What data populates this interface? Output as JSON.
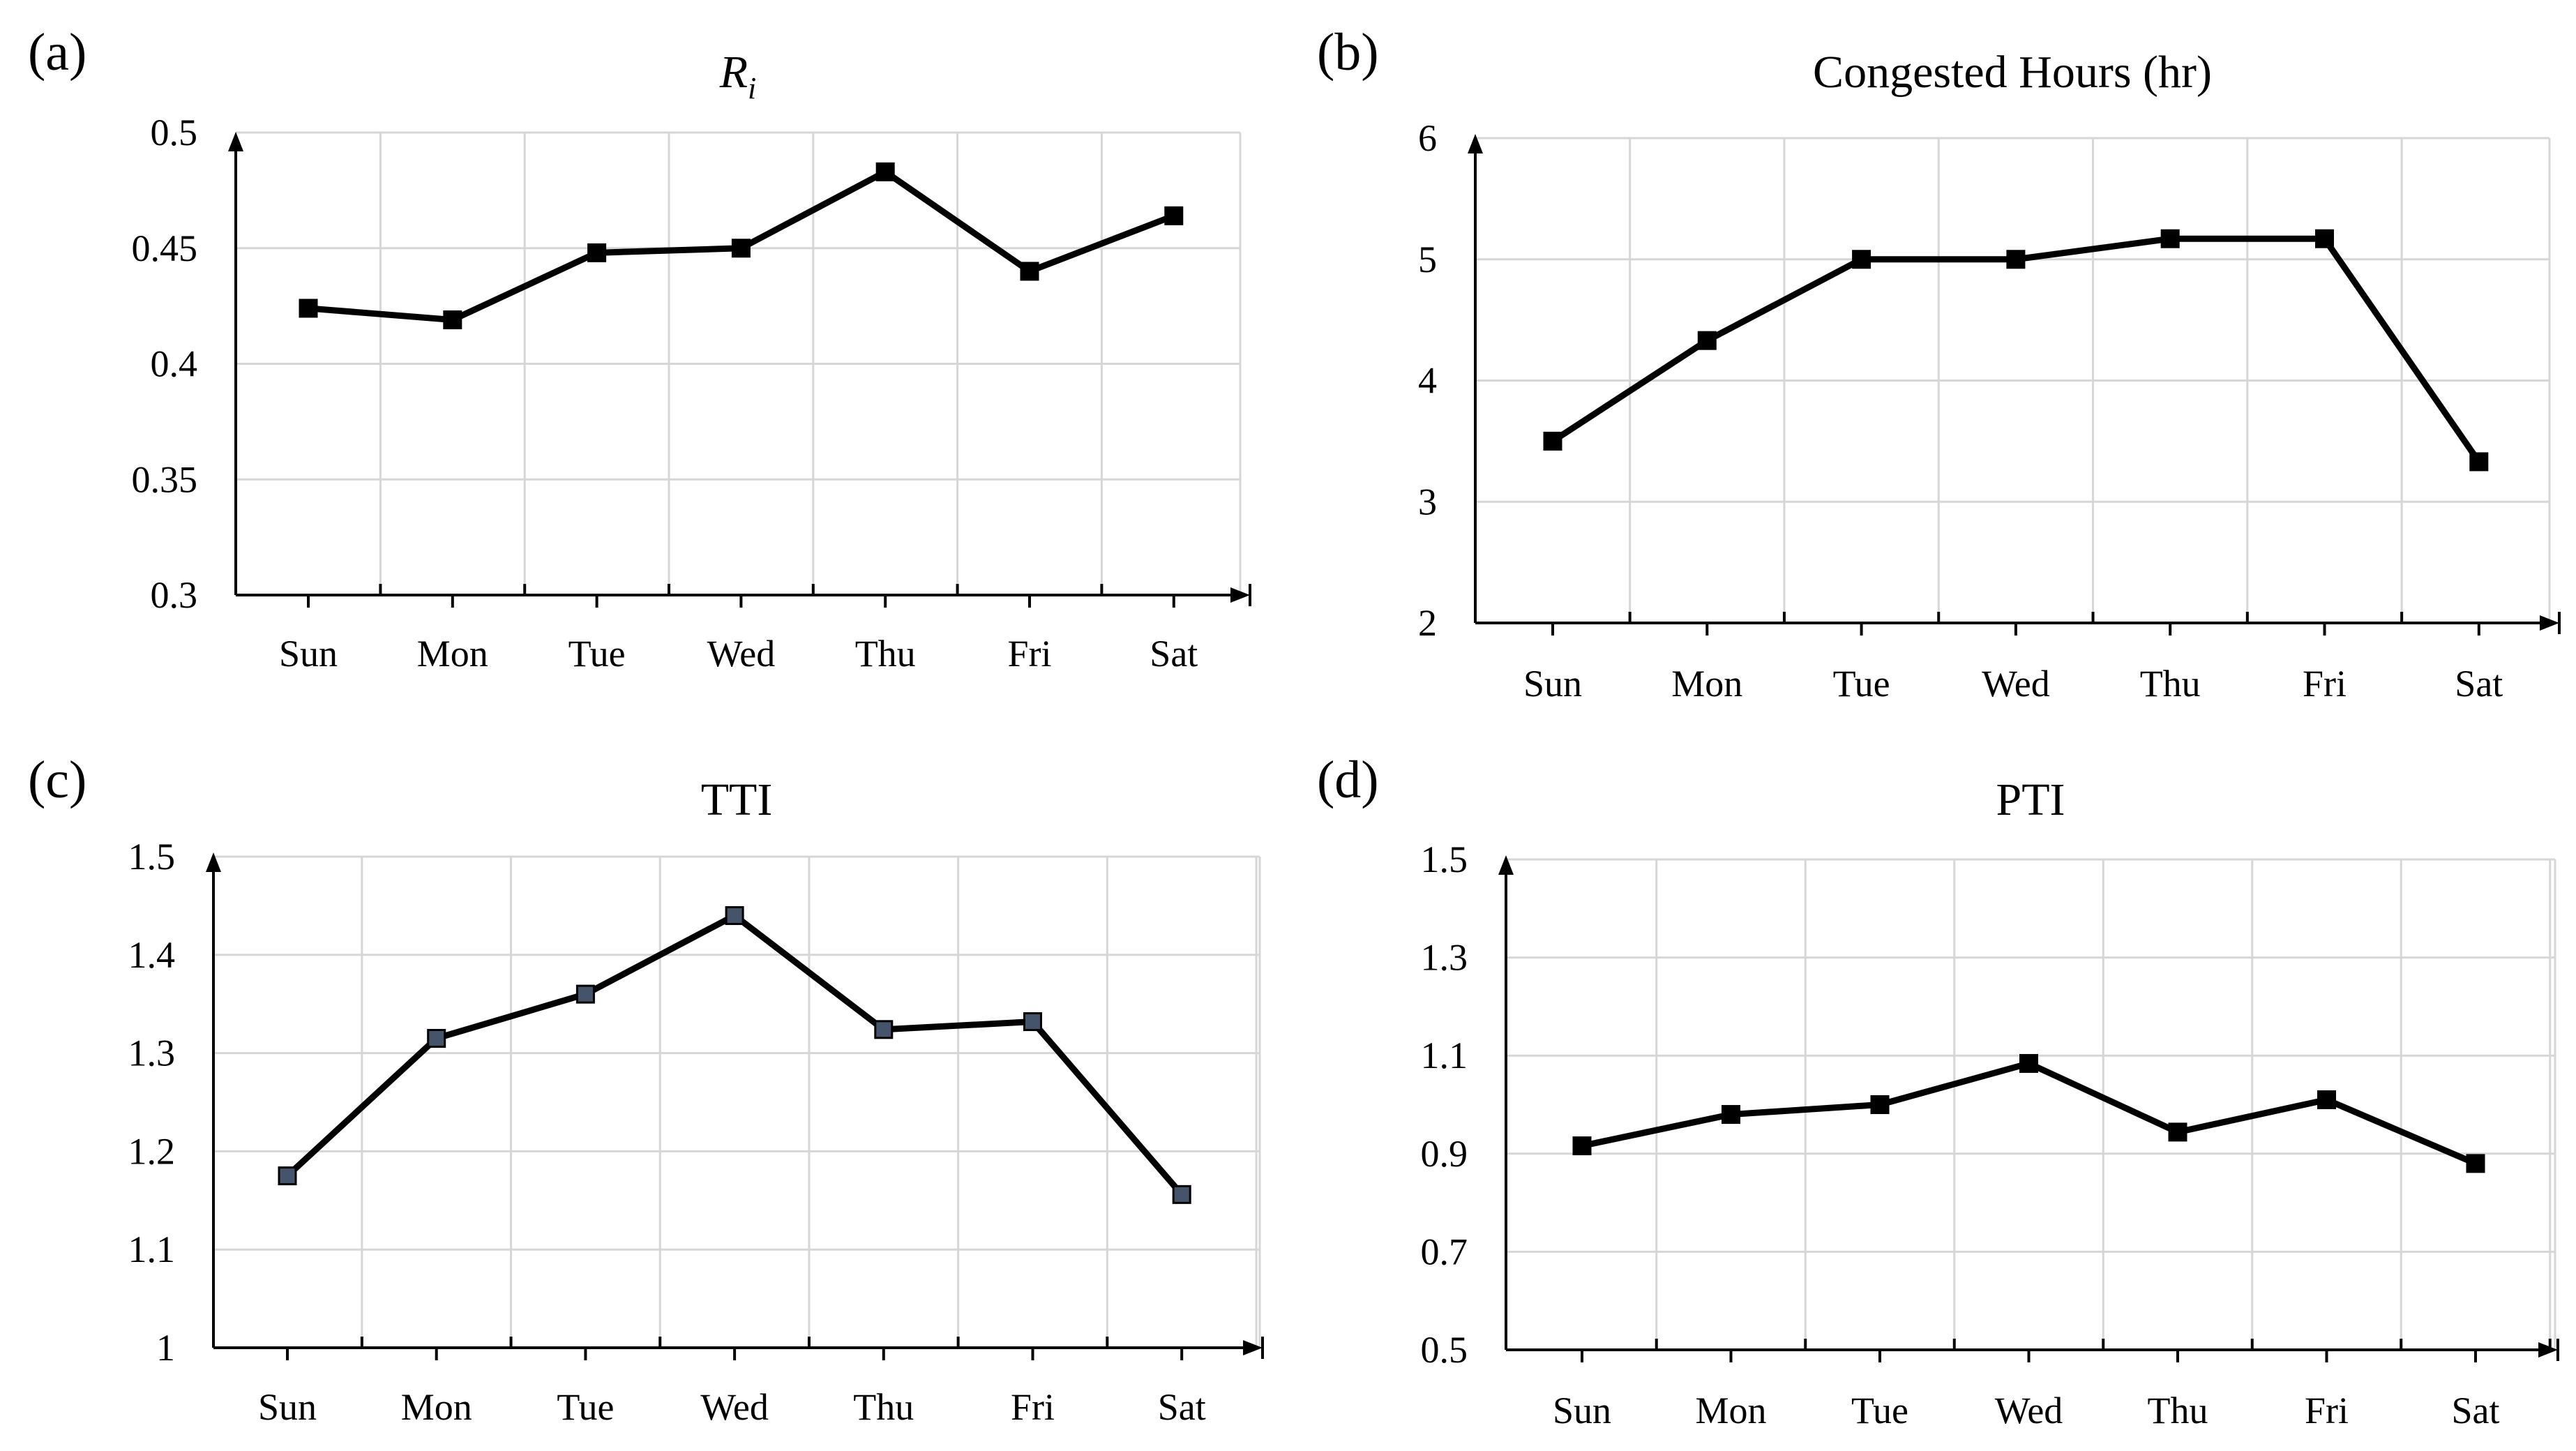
{
  "chart_data": [
    {
      "panel_label": "(a)",
      "type": "line",
      "title": "R",
      "title_subscript": "i",
      "categories": [
        "Sun",
        "Mon",
        "Tue",
        "Wed",
        "Thu",
        "Fri",
        "Sat"
      ],
      "values": [
        0.424,
        0.419,
        0.448,
        0.45,
        0.483,
        0.44,
        0.464
      ],
      "ylim": [
        0.3,
        0.5
      ],
      "yticks": [
        "0.3",
        "0.35",
        "0.4",
        "0.45",
        "0.5"
      ],
      "xlabel": "",
      "ylabel": "",
      "grid": true,
      "marker_color": "#000000"
    },
    {
      "panel_label": "(b)",
      "type": "line",
      "title": "Congested Hours (hr)",
      "categories": [
        "Sun",
        "Mon",
        "Tue",
        "Wed",
        "Thu",
        "Fri",
        "Sat"
      ],
      "values": [
        3.5,
        4.33,
        5.0,
        5.0,
        5.17,
        5.17,
        3.33
      ],
      "ylim": [
        2,
        6
      ],
      "yticks": [
        "2",
        "3",
        "4",
        "5",
        "6"
      ],
      "xlabel": "",
      "ylabel": "",
      "grid": true,
      "marker_color": "#000000"
    },
    {
      "panel_label": "(c)",
      "type": "line",
      "title": "TTI",
      "categories": [
        "Sun",
        "Mon",
        "Tue",
        "Wed",
        "Thu",
        "Fri",
        "Sat"
      ],
      "values": [
        1.175,
        1.315,
        1.36,
        1.44,
        1.324,
        1.332,
        1.156
      ],
      "ylim": [
        1.0,
        1.5
      ],
      "yticks": [
        "1",
        "1.1",
        "1.2",
        "1.3",
        "1.4",
        "1.5"
      ],
      "xlabel": "",
      "ylabel": "",
      "grid": true,
      "marker_color": "#44546a"
    },
    {
      "panel_label": "(d)",
      "type": "line",
      "title": "PTI",
      "categories": [
        "Sun",
        "Mon",
        "Tue",
        "Wed",
        "Thu",
        "Fri",
        "Sat"
      ],
      "values": [
        0.916,
        0.98,
        1.0,
        1.084,
        0.944,
        1.01,
        0.88
      ],
      "ylim": [
        0.5,
        1.5
      ],
      "yticks": [
        "0.5",
        "0.7",
        "0.9",
        "1.1",
        "1.3",
        "1.5"
      ],
      "xlabel": "",
      "ylabel": "",
      "grid": true,
      "marker_color": "#000000"
    }
  ]
}
